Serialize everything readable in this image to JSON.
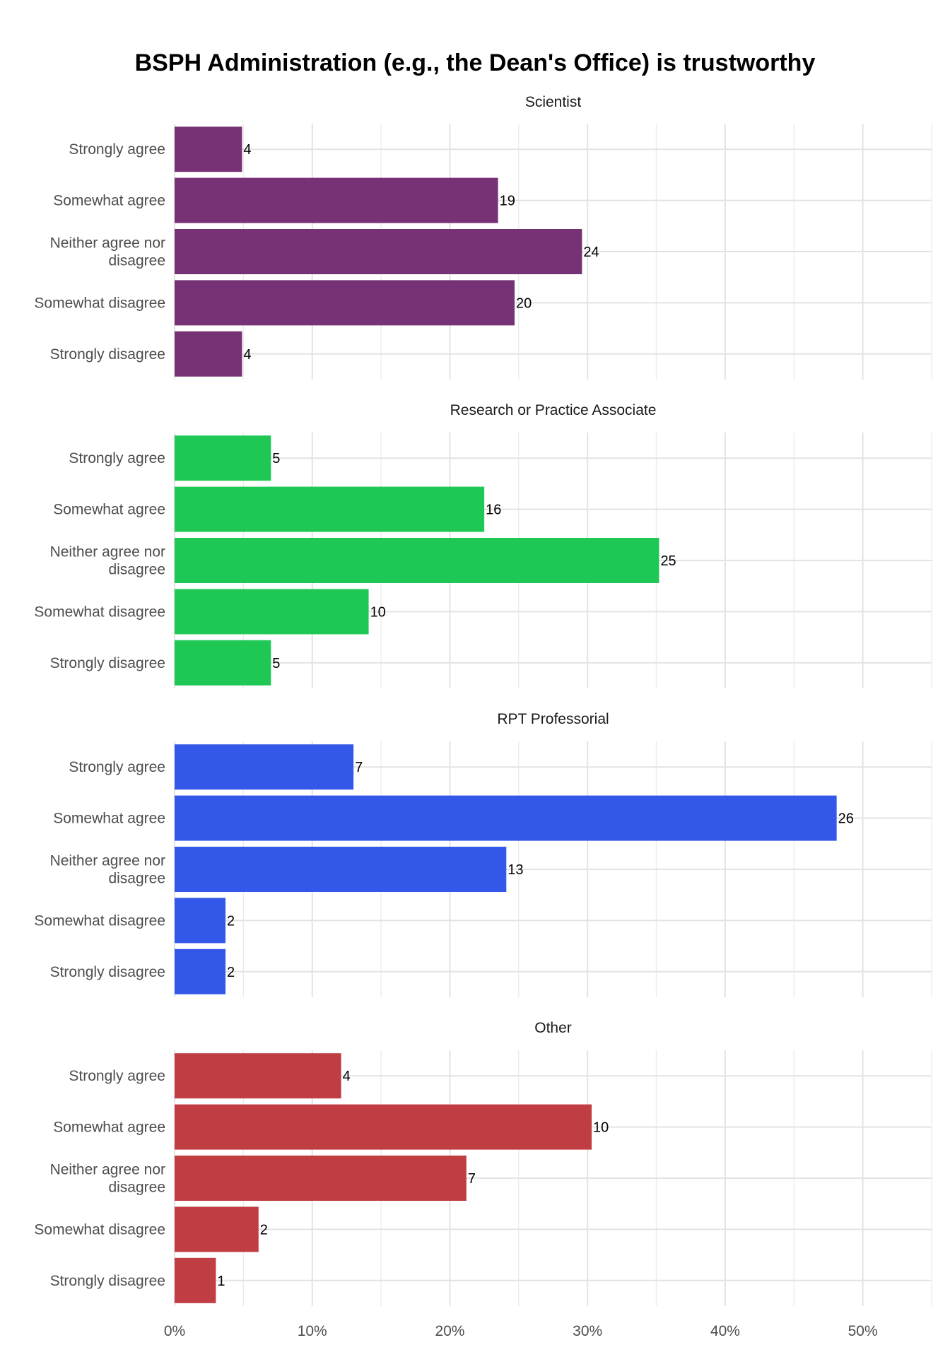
{
  "chart_data": {
    "type": "bar",
    "orientation": "horizontal",
    "title": "BSPH Administration (e.g., the Dean's Office) is trustworthy",
    "xlabel": "",
    "ylabel": "",
    "xlim": [
      0,
      55
    ],
    "x_ticks": [
      0,
      10,
      20,
      30,
      40,
      50
    ],
    "x_tick_labels": [
      "0%",
      "10%",
      "20%",
      "30%",
      "40%",
      "50%"
    ],
    "grid": true,
    "legend": "none",
    "categories": [
      "Strongly agree",
      "Somewhat agree",
      "Neither agree nor disagree",
      "Somewhat disagree",
      "Strongly disagree"
    ],
    "category_lines": [
      [
        "Strongly agree"
      ],
      [
        "Somewhat agree"
      ],
      [
        "Neither agree nor",
        "disagree"
      ],
      [
        "Somewhat disagree"
      ],
      [
        "Strongly disagree"
      ]
    ],
    "panels": [
      {
        "name": "Scientist",
        "color": "#773175",
        "percent": [
          4.9,
          23.5,
          29.6,
          24.7,
          4.9
        ],
        "counts": [
          4,
          19,
          24,
          20,
          4
        ]
      },
      {
        "name": "Research or Practice Associate",
        "color": "#1fc855",
        "percent": [
          7.0,
          22.5,
          35.2,
          14.1,
          7.0
        ],
        "counts": [
          5,
          16,
          25,
          10,
          5
        ]
      },
      {
        "name": "RPT Professorial",
        "color": "#3357e8",
        "percent": [
          13.0,
          48.1,
          24.1,
          3.7,
          3.7
        ],
        "counts": [
          7,
          26,
          13,
          2,
          2
        ]
      },
      {
        "name": "Other",
        "color": "#c13d44",
        "percent": [
          12.1,
          30.3,
          21.2,
          6.1,
          3.0
        ],
        "counts": [
          4,
          10,
          7,
          2,
          1
        ]
      }
    ]
  }
}
